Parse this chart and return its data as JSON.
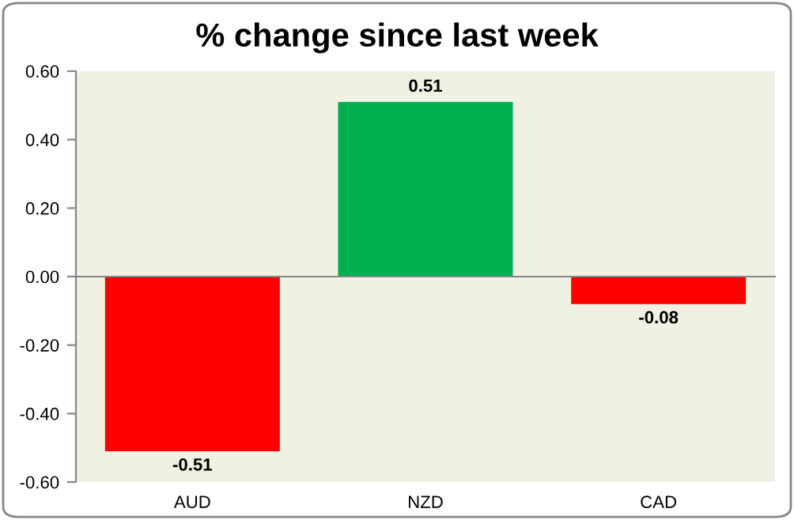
{
  "chart_data": {
    "type": "bar",
    "title": "% change since last week",
    "categories": [
      "AUD",
      "NZD",
      "CAD"
    ],
    "values": [
      -0.51,
      0.51,
      -0.08
    ],
    "colors": [
      "#ff0000",
      "#00b050",
      "#ff0000"
    ],
    "value_labels": [
      "-0.51",
      "0.51",
      "-0.08"
    ],
    "ylim": [
      -0.6,
      0.6
    ],
    "yticks": [
      {
        "value": -0.6,
        "label": "-0.60"
      },
      {
        "value": -0.4,
        "label": "-0.40"
      },
      {
        "value": -0.2,
        "label": "-0.20"
      },
      {
        "value": 0,
        "label": "0.00"
      },
      {
        "value": 0.2,
        "label": "0.20"
      },
      {
        "value": 0.4,
        "label": "0.40"
      },
      {
        "value": 0.6,
        "label": "0.60"
      }
    ],
    "legend": false
  }
}
